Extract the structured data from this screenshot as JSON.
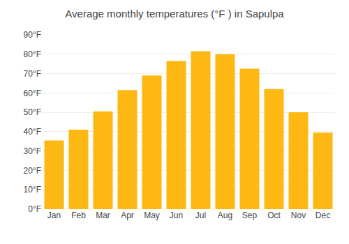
{
  "chart_data": {
    "type": "bar",
    "title": "Average monthly temperatures (°F ) in Sapulpa",
    "categories": [
      "Jan",
      "Feb",
      "Mar",
      "Apr",
      "May",
      "Jun",
      "Jul",
      "Aug",
      "Sep",
      "Oct",
      "Nov",
      "Dec"
    ],
    "values": [
      35.5,
      41.0,
      50.5,
      61.5,
      69.0,
      76.5,
      81.5,
      80.0,
      72.5,
      62.0,
      50.0,
      39.5
    ],
    "color": "#FDB813",
    "ylim": [
      0,
      90
    ],
    "yticks": [
      {
        "value": 0,
        "label": "0°F"
      },
      {
        "value": 10,
        "label": "10°F"
      },
      {
        "value": 20,
        "label": "20°F"
      },
      {
        "value": 30,
        "label": "30°F"
      },
      {
        "value": 40,
        "label": "40°F"
      },
      {
        "value": 50,
        "label": "50°F"
      },
      {
        "value": 60,
        "label": "60°F"
      },
      {
        "value": 70,
        "label": "70°F"
      },
      {
        "value": 80,
        "label": "80°F"
      },
      {
        "value": 90,
        "label": "90°F"
      }
    ],
    "grid": true
  }
}
